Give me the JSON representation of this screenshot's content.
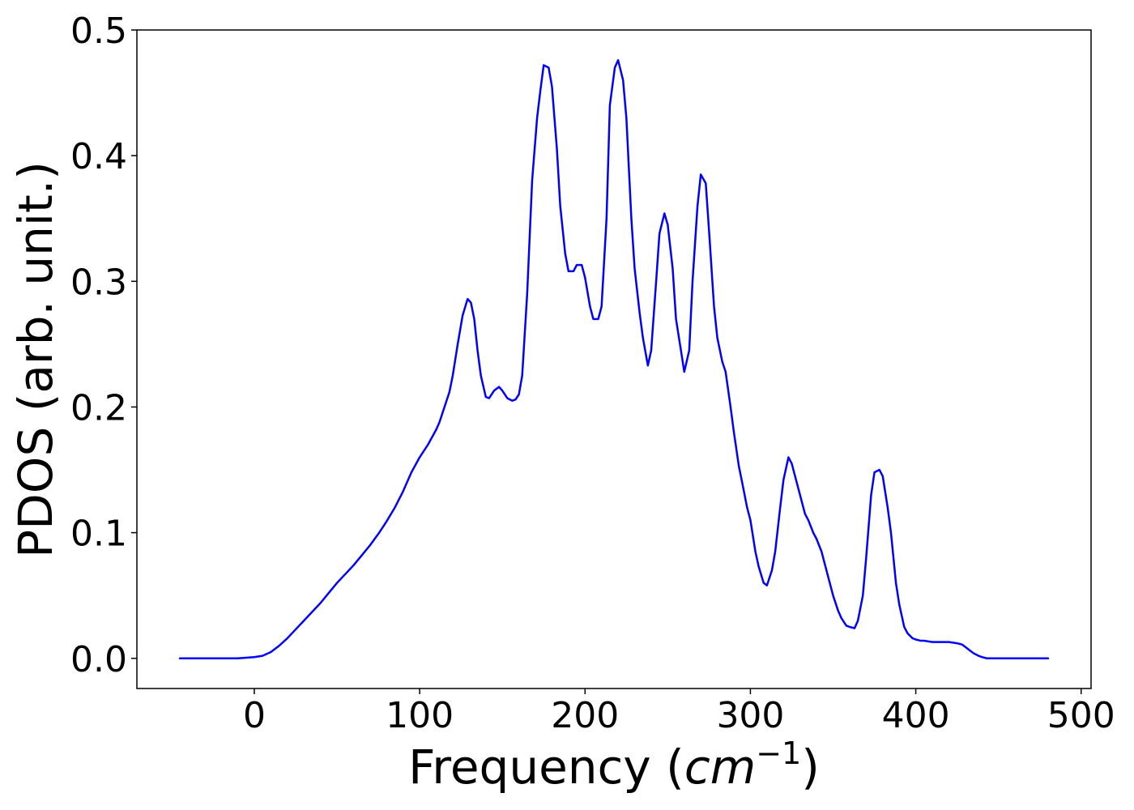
{
  "chart_data": {
    "type": "line",
    "title": "",
    "xlabel": "Frequency (",
    "xlabel_unit_base": "cm",
    "xlabel_unit_exp": "−1",
    "xlabel_close": ")",
    "ylabel": "PDOS (arb. unit.)",
    "xlim": [
      -71,
      506
    ],
    "ylim": [
      -0.024,
      0.5
    ],
    "xticks": [
      0,
      100,
      200,
      300,
      400,
      500
    ],
    "yticks": [
      0.0,
      0.1,
      0.2,
      0.3,
      0.4,
      0.5
    ],
    "xtick_labels": [
      "0",
      "100",
      "200",
      "300",
      "400",
      "500"
    ],
    "ytick_labels": [
      "0.0",
      "0.1",
      "0.2",
      "0.3",
      "0.4",
      "0.5"
    ],
    "grid": false,
    "series": [
      {
        "color": "#0000ff",
        "x": [
          -45,
          -10,
          0,
          5,
          10,
          15,
          20,
          25,
          30,
          35,
          40,
          45,
          50,
          55,
          60,
          65,
          70,
          75,
          80,
          85,
          90,
          95,
          100,
          105,
          110,
          112,
          115,
          118,
          120,
          123,
          126,
          129,
          131,
          133,
          135,
          137,
          140,
          142,
          145,
          148,
          150,
          153,
          156,
          158,
          160,
          162,
          165,
          168,
          171,
          173,
          175,
          178,
          180,
          183,
          185,
          188,
          190,
          193,
          195,
          198,
          200,
          203,
          205,
          208,
          210,
          213,
          215,
          218,
          220,
          223,
          225,
          228,
          230,
          233,
          235,
          238,
          240,
          243,
          245,
          248,
          250,
          253,
          255,
          258,
          260,
          263,
          265,
          268,
          270,
          273,
          275,
          278,
          280,
          283,
          285,
          288,
          290,
          293,
          295,
          298,
          300,
          303,
          305,
          308,
          310,
          313,
          315,
          318,
          320,
          323,
          325,
          328,
          330,
          333,
          335,
          338,
          340,
          343,
          345,
          348,
          350,
          353,
          355,
          358,
          360,
          363,
          365,
          368,
          370,
          373,
          375,
          378,
          380,
          383,
          385,
          388,
          390,
          393,
          395,
          398,
          400,
          403,
          405,
          410,
          420,
          425,
          428,
          430,
          433,
          435,
          438,
          440,
          443,
          445,
          450,
          460,
          480
        ],
        "y": [
          0.0,
          0.0,
          0.001,
          0.002,
          0.005,
          0.01,
          0.016,
          0.023,
          0.03,
          0.037,
          0.044,
          0.052,
          0.06,
          0.067,
          0.074,
          0.082,
          0.09,
          0.099,
          0.109,
          0.12,
          0.133,
          0.148,
          0.16,
          0.17,
          0.182,
          0.188,
          0.2,
          0.212,
          0.225,
          0.25,
          0.273,
          0.286,
          0.283,
          0.27,
          0.245,
          0.225,
          0.208,
          0.207,
          0.213,
          0.216,
          0.213,
          0.207,
          0.205,
          0.206,
          0.21,
          0.225,
          0.29,
          0.38,
          0.43,
          0.452,
          0.472,
          0.47,
          0.455,
          0.405,
          0.36,
          0.322,
          0.308,
          0.308,
          0.313,
          0.313,
          0.303,
          0.28,
          0.27,
          0.27,
          0.28,
          0.35,
          0.44,
          0.47,
          0.476,
          0.46,
          0.43,
          0.35,
          0.31,
          0.275,
          0.255,
          0.233,
          0.245,
          0.3,
          0.338,
          0.354,
          0.345,
          0.31,
          0.27,
          0.245,
          0.228,
          0.245,
          0.3,
          0.36,
          0.385,
          0.378,
          0.34,
          0.28,
          0.255,
          0.236,
          0.228,
          0.2,
          0.18,
          0.153,
          0.14,
          0.12,
          0.11,
          0.085,
          0.073,
          0.06,
          0.058,
          0.07,
          0.085,
          0.12,
          0.142,
          0.16,
          0.155,
          0.14,
          0.13,
          0.115,
          0.11,
          0.1,
          0.095,
          0.085,
          0.075,
          0.06,
          0.05,
          0.038,
          0.032,
          0.026,
          0.025,
          0.024,
          0.03,
          0.05,
          0.08,
          0.13,
          0.148,
          0.15,
          0.145,
          0.12,
          0.1,
          0.06,
          0.043,
          0.025,
          0.02,
          0.016,
          0.015,
          0.014,
          0.014,
          0.013,
          0.013,
          0.012,
          0.011,
          0.009,
          0.006,
          0.004,
          0.002,
          0.001,
          0.0,
          0.0,
          0.0,
          0.0,
          0.0
        ]
      }
    ]
  }
}
